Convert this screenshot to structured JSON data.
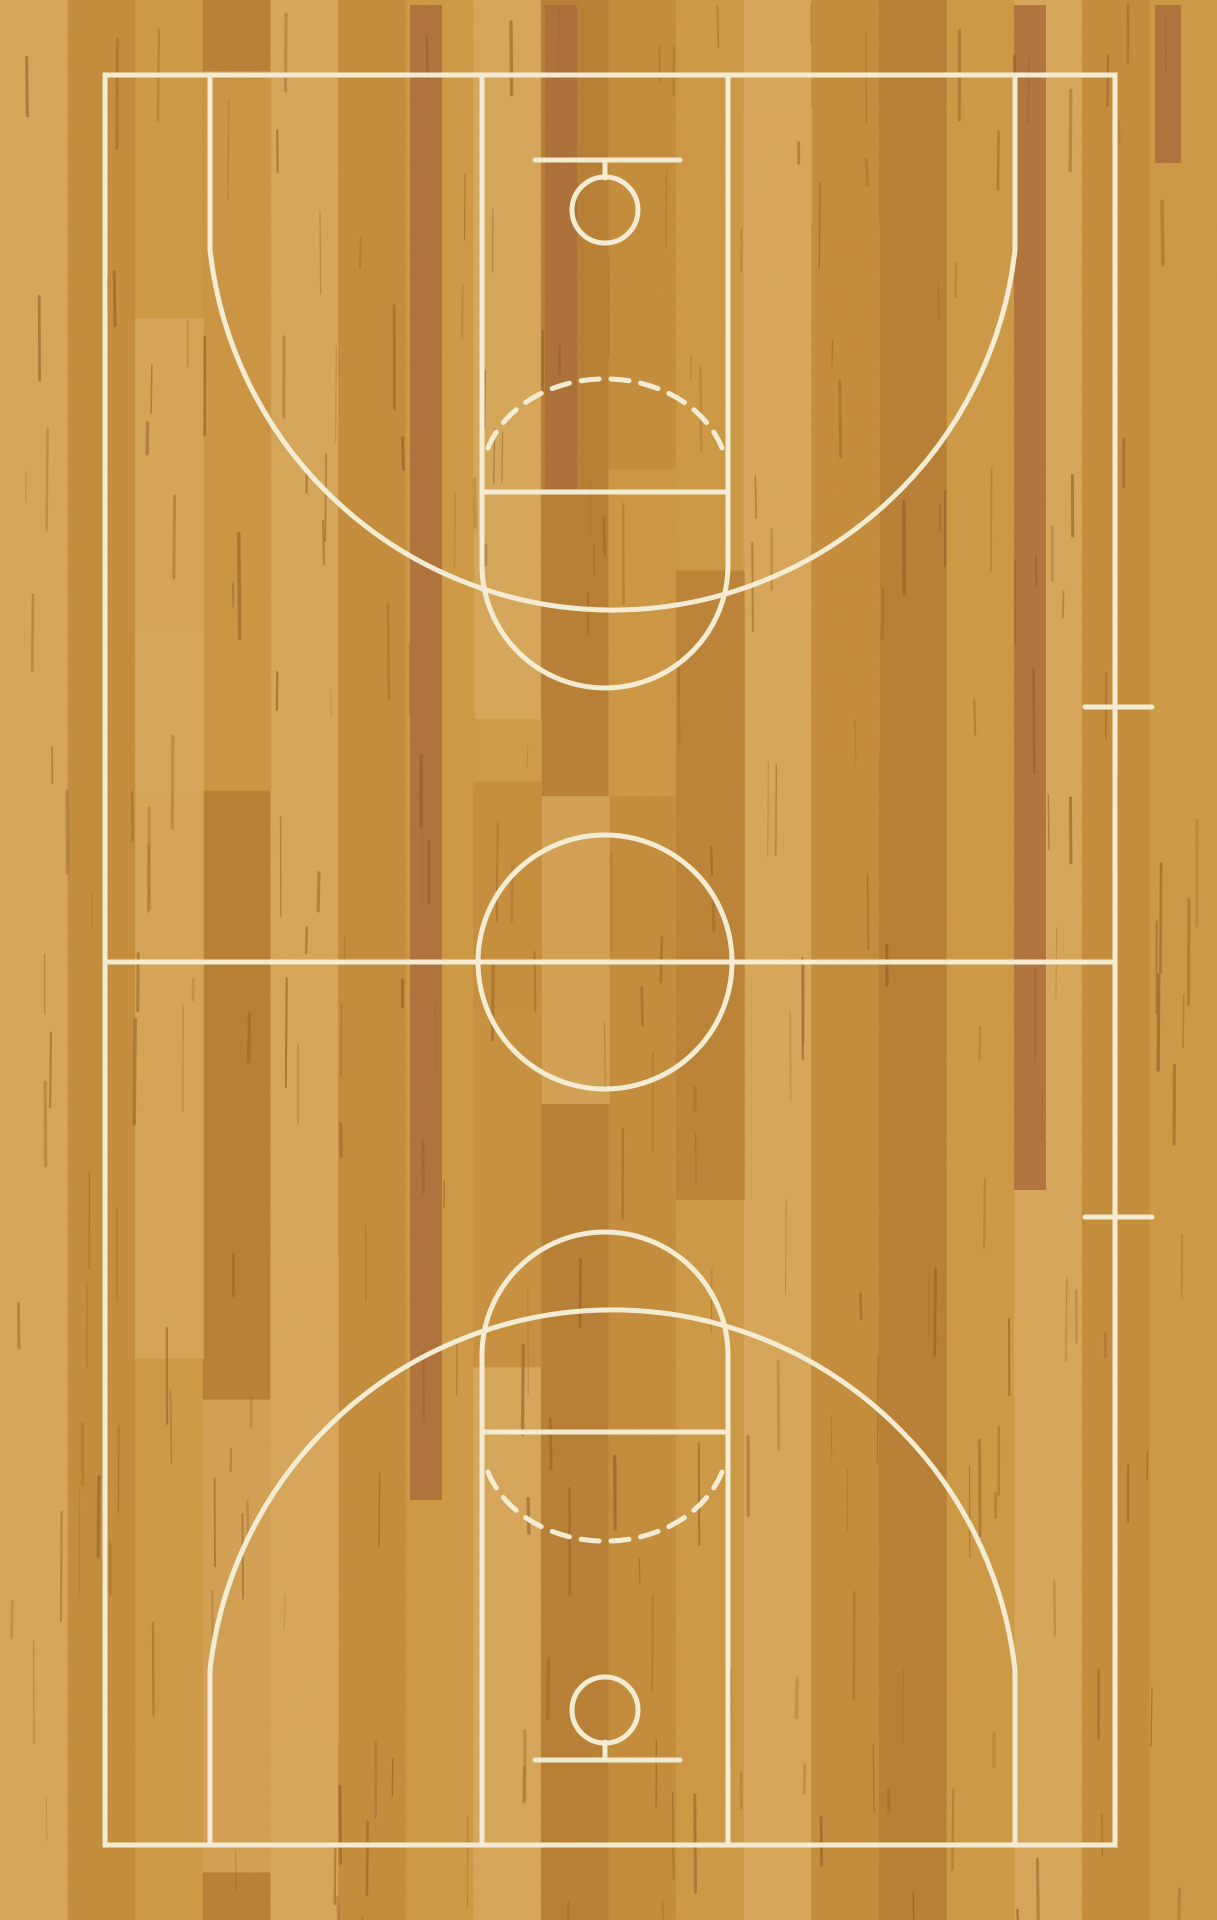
{
  "rug": {
    "colors": {
      "wood_base": "#cf9a45",
      "wood_light": "#d9a85a",
      "wood_mid": "#c58d3b",
      "wood_dark": "#b87f33",
      "stripe_brown": "#a96a38",
      "grain": "#8e5a24",
      "court_lines": "#f3ecd2",
      "edge": "#c9943f"
    },
    "planks": [
      {
        "shade": "wood_light"
      },
      {
        "shade": "wood_mid"
      },
      {
        "shade": "wood_base"
      },
      {
        "shade": "wood_dark"
      },
      {
        "shade": "wood_light"
      },
      {
        "shade": "wood_mid"
      },
      {
        "shade": "wood_base"
      },
      {
        "shade": "wood_light"
      },
      {
        "shade": "wood_dark"
      },
      {
        "shade": "wood_mid"
      },
      {
        "shade": "wood_base"
      },
      {
        "shade": "wood_light"
      },
      {
        "shade": "wood_mid"
      },
      {
        "shade": "wood_dark"
      },
      {
        "shade": "wood_base"
      },
      {
        "shade": "wood_light"
      },
      {
        "shade": "wood_mid"
      },
      {
        "shade": "wood_base"
      }
    ],
    "court": {
      "has_center_circle": true,
      "has_three_point_arcs": true,
      "has_keys": true,
      "has_dashed_free_throw_arcs": true,
      "has_sideline_ticks": true
    }
  }
}
